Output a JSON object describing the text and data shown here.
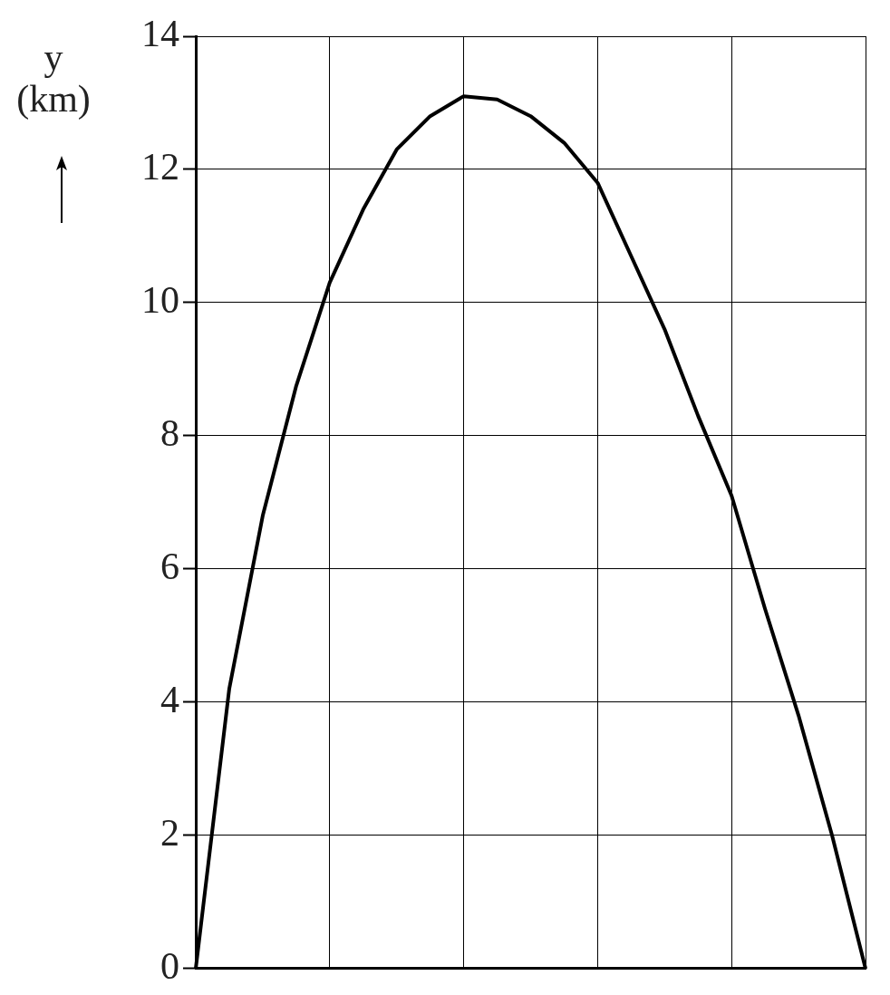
{
  "chart_data": {
    "type": "line",
    "ylabel": "y (km)",
    "categories": [
      null,
      null,
      null,
      null,
      null,
      null,
      null,
      null,
      null,
      null,
      null,
      null,
      null,
      null,
      null,
      null,
      null,
      null,
      null,
      null,
      null
    ],
    "series": [
      {
        "color": "#000000",
        "values": [
          0,
          4.2,
          6.8,
          8.75,
          10.3,
          11.4,
          12.3,
          12.8,
          13.1,
          13.05,
          12.8,
          12.4,
          11.8,
          10.7,
          9.6,
          8.3,
          7.1,
          5.4,
          3.8,
          2.0,
          0
        ]
      }
    ],
    "ylim": [
      0,
      14
    ],
    "yticks": [
      0,
      2,
      4,
      6,
      8,
      10,
      12,
      14
    ],
    "tick_labels": "y",
    "grid": true,
    "legend": false
  }
}
